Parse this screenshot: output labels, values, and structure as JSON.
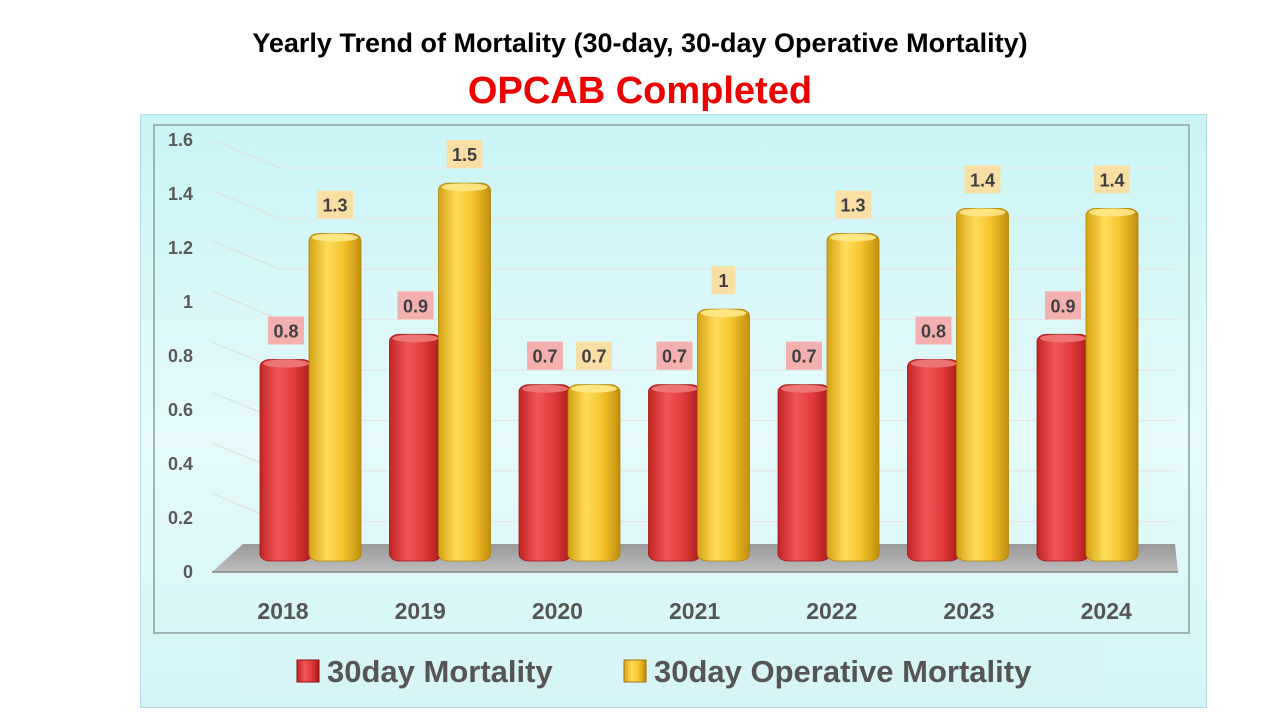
{
  "chart_data": {
    "type": "bar",
    "title": "Yearly Trend of Mortality (30-day,  30-day Operative Mortality)",
    "subtitle": "OPCAB Completed",
    "categories": [
      "2018",
      "2019",
      "2020",
      "2021",
      "2022",
      "2023",
      "2024"
    ],
    "series": [
      {
        "name": "30day Mortality",
        "values": [
          0.8,
          0.9,
          0.7,
          0.7,
          0.7,
          0.8,
          0.9
        ],
        "color": "#e03838"
      },
      {
        "name": "30day Operative Mortality",
        "values": [
          1.3,
          1.5,
          0.7,
          1,
          1.3,
          1.4,
          1.4
        ],
        "color": "#f2c12e"
      }
    ],
    "ylim": [
      0,
      1.6
    ],
    "yticks": [
      "0",
      "0.2",
      "0.4",
      "0.6",
      "0.8",
      "1",
      "1.2",
      "1.4",
      "1.6"
    ],
    "grid": true,
    "legend": "bottom",
    "label_colors": [
      "#f3b0ae",
      "#f8e0a4"
    ]
  }
}
